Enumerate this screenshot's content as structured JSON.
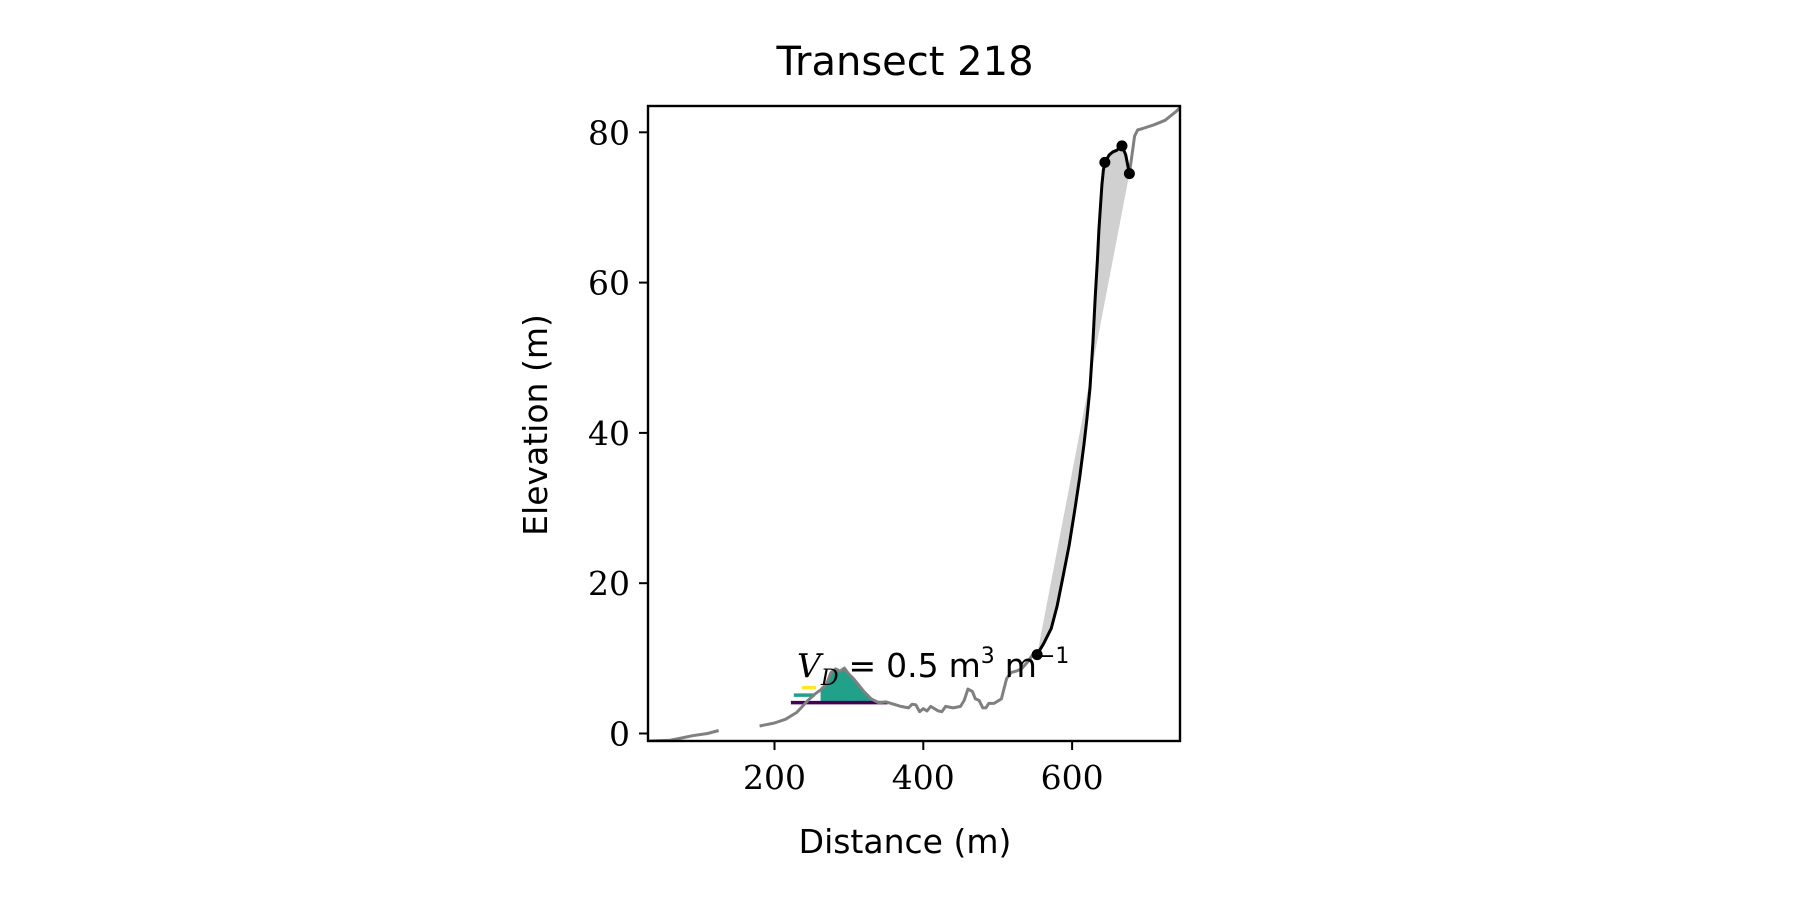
{
  "chart_data": {
    "type": "line",
    "title": "Transect 218",
    "xlabel": "Distance (m)",
    "ylabel": "Elevation (m)",
    "xlim": [
      30,
      745
    ],
    "ylim": [
      -1,
      83.5
    ],
    "xticks": [
      200,
      400,
      600
    ],
    "yticks": [
      0,
      20,
      40,
      60,
      80
    ],
    "xtick_labels": [
      "200",
      "400",
      "600"
    ],
    "ytick_labels": [
      "0",
      "20",
      "40",
      "60",
      "80"
    ],
    "grid": false,
    "annotation": {
      "symbol": "V",
      "subscript": "D",
      "equals": "=",
      "value": "0.5",
      "unit_m": "m",
      "unit_exp": "3",
      "unit_m2": "m",
      "unit_exp2": "−1"
    },
    "colors": {
      "profile": "#808080",
      "cliff": "#000000",
      "cliff_fill": "#d0d0d0",
      "dune_fill": "#21a08a",
      "dune_line_top": "#fde725",
      "dune_line_mid": "#21a08a",
      "dune_line_low": "#440154"
    },
    "series": [
      {
        "role": "profile_segment_1",
        "x": [
          30,
          60,
          75,
          90,
          110,
          125
        ],
        "y": [
          -1,
          -0.9,
          -0.6,
          -0.3,
          0.0,
          0.4
        ]
      },
      {
        "role": "profile_segment_2",
        "x": [
          180,
          200,
          215,
          230,
          245,
          255,
          262,
          270,
          276,
          282,
          288,
          294,
          300,
          306,
          312,
          320,
          330,
          340,
          350,
          360,
          370,
          380,
          385,
          390,
          395,
          400,
          405,
          410,
          415,
          420,
          425,
          430,
          440,
          450,
          455,
          460,
          466,
          470,
          475,
          480,
          484,
          488,
          495,
          505,
          512,
          518,
          525,
          532,
          540,
          548,
          553
        ],
        "y": [
          1.0,
          1.4,
          1.9,
          2.8,
          4.4,
          5.3,
          5.8,
          6.6,
          8.1,
          8.6,
          8.3,
          8.7,
          7.9,
          7.3,
          6.6,
          5.6,
          4.6,
          4.1,
          4.2,
          3.9,
          3.6,
          3.4,
          3.9,
          3.8,
          2.9,
          3.3,
          3.0,
          3.6,
          3.3,
          3.0,
          2.9,
          3.6,
          3.4,
          3.6,
          4.4,
          5.9,
          5.6,
          4.6,
          4.4,
          3.4,
          3.4,
          4.0,
          4.0,
          4.6,
          7.3,
          8.1,
          8.3,
          8.6,
          9.5,
          10.6,
          10.5
        ]
      },
      {
        "role": "profile_top",
        "x": [
          677,
          684,
          688,
          695,
          710,
          725,
          740,
          745
        ],
        "y": [
          74.5,
          79.5,
          80.3,
          80.5,
          81.0,
          81.6,
          82.8,
          83.3
        ]
      },
      {
        "role": "cliff_line",
        "x": [
          553,
          562,
          572,
          580,
          588,
          596,
          604,
          610,
          616,
          620,
          624,
          628,
          631,
          634,
          636,
          638,
          640,
          642,
          644,
          650,
          655,
          660,
          667,
          672,
          677
        ],
        "y": [
          10.5,
          12.0,
          14.0,
          17.0,
          21.0,
          25.0,
          30.0,
          34.0,
          38.5,
          42.0,
          46.0,
          52.0,
          58.0,
          63.0,
          67.0,
          70.0,
          73.0,
          75.0,
          76.0,
          77.0,
          77.4,
          77.6,
          78.2,
          77.0,
          74.5
        ]
      },
      {
        "role": "cliff_points",
        "x": [
          553,
          644,
          667,
          677
        ],
        "y": [
          10.5,
          76.0,
          78.2,
          74.5
        ]
      },
      {
        "role": "dune_levels",
        "segments": [
          {
            "x": [
              237,
              256
            ],
            "y": 6.1,
            "color_key": "dune_line_top"
          },
          {
            "x": [
              226,
              254
            ],
            "y": 5.1,
            "color_key": "dune_line_mid"
          },
          {
            "x": [
              222,
              352
            ],
            "y": 4.1,
            "color_key": "dune_line_low"
          }
        ]
      }
    ]
  }
}
